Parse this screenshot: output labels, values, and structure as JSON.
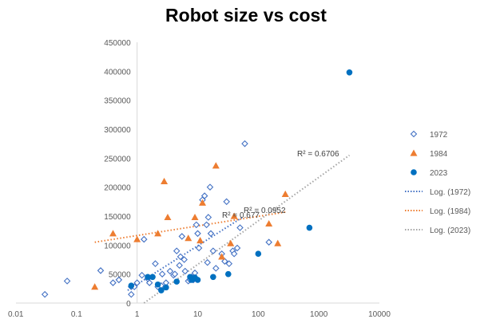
{
  "chart_data": {
    "type": "scatter",
    "title": "Robot size vs cost",
    "xlabel": "",
    "ylabel": "",
    "x_scale": "log",
    "xlim": [
      0.01,
      10000
    ],
    "ylim": [
      0,
      450000
    ],
    "x_ticks": [
      "0.01",
      "0.1",
      "1",
      "10",
      "100",
      "1000",
      "10000"
    ],
    "y_ticks": [
      "0",
      "50000",
      "100000",
      "150000",
      "200000",
      "250000",
      "300000",
      "350000",
      "400000",
      "450000"
    ],
    "grid": false,
    "legend_position": "right",
    "series": [
      {
        "name": "1972",
        "marker": "open-diamond",
        "color": "#4472C4",
        "points": [
          [
            0.03,
            15000
          ],
          [
            0.07,
            38000
          ],
          [
            0.25,
            56000
          ],
          [
            0.4,
            35000
          ],
          [
            0.5,
            40000
          ],
          [
            0.8,
            15000
          ],
          [
            0.8,
            28000
          ],
          [
            0.9,
            28000
          ],
          [
            1.0,
            35000
          ],
          [
            1.2,
            48000
          ],
          [
            1.3,
            110000
          ],
          [
            1.5,
            42000
          ],
          [
            1.6,
            35000
          ],
          [
            2.0,
            68000
          ],
          [
            2.2,
            28000
          ],
          [
            2.5,
            30000
          ],
          [
            2.6,
            50000
          ],
          [
            3.0,
            35000
          ],
          [
            3.5,
            55000
          ],
          [
            4.0,
            48000
          ],
          [
            4.2,
            50000
          ],
          [
            4.5,
            90000
          ],
          [
            5.0,
            65000
          ],
          [
            5.2,
            80000
          ],
          [
            5.5,
            115000
          ],
          [
            6.0,
            75000
          ],
          [
            6.2,
            55000
          ],
          [
            7.0,
            38000
          ],
          [
            7.5,
            40000
          ],
          [
            8.0,
            45000
          ],
          [
            8.5,
            40000
          ],
          [
            9.0,
            52000
          ],
          [
            9.5,
            135000
          ],
          [
            10.0,
            120000
          ],
          [
            10.5,
            95000
          ],
          [
            12.0,
            178000
          ],
          [
            13.0,
            185000
          ],
          [
            14.0,
            135000
          ],
          [
            14.5,
            70000
          ],
          [
            15.0,
            148000
          ],
          [
            16.0,
            200000
          ],
          [
            16.5,
            120000
          ],
          [
            18.0,
            90000
          ],
          [
            20.0,
            60000
          ],
          [
            25.0,
            85000
          ],
          [
            28.0,
            72000
          ],
          [
            30.0,
            175000
          ],
          [
            33.0,
            68000
          ],
          [
            38.0,
            90000
          ],
          [
            40.0,
            85000
          ],
          [
            45.0,
            95000
          ],
          [
            50.0,
            130000
          ],
          [
            60.0,
            275000
          ],
          [
            150.0,
            105000
          ]
        ]
      },
      {
        "name": "1984",
        "marker": "filled-triangle",
        "color": "#ED7D31",
        "points": [
          [
            0.2,
            28000
          ],
          [
            0.4,
            120000
          ],
          [
            1.0,
            110000
          ],
          [
            2.2,
            120000
          ],
          [
            2.8,
            210000
          ],
          [
            3.2,
            148000
          ],
          [
            7.0,
            112000
          ],
          [
            9.0,
            148000
          ],
          [
            11.0,
            108000
          ],
          [
            12.0,
            173000
          ],
          [
            20.0,
            237000
          ],
          [
            25.0,
            80000
          ],
          [
            35.0,
            103000
          ],
          [
            40.0,
            150000
          ],
          [
            150.0,
            137000
          ],
          [
            210.0,
            103000
          ],
          [
            280.0,
            188000
          ]
        ]
      },
      {
        "name": "2023",
        "marker": "filled-circle",
        "color": "#0070C0",
        "points": [
          [
            0.8,
            30000
          ],
          [
            1.5,
            45000
          ],
          [
            1.8,
            45000
          ],
          [
            2.2,
            32000
          ],
          [
            2.5,
            22000
          ],
          [
            3.0,
            27000
          ],
          [
            4.5,
            37000
          ],
          [
            7.5,
            45000
          ],
          [
            8.0,
            40000
          ],
          [
            8.5,
            42000
          ],
          [
            9.0,
            44000
          ],
          [
            10.0,
            40000
          ],
          [
            18.0,
            45000
          ],
          [
            32.0,
            50000
          ],
          [
            100.0,
            85000
          ],
          [
            700.0,
            130000
          ],
          [
            3200.0,
            398000
          ]
        ]
      }
    ],
    "trendlines": [
      {
        "name": "Log. (1972)",
        "color": "#4472C4",
        "x_range": [
          0.7,
          55
        ],
        "y_range": [
          22000,
          148000
        ]
      },
      {
        "name": "Log. (1984)",
        "color": "#ED7D31",
        "x_range": [
          0.2,
          280
        ],
        "y_range": [
          105000,
          157000
        ]
      },
      {
        "name": "Log. (2023)",
        "color": "#A5A5A5",
        "x_range": [
          1.3,
          3200
        ],
        "y_range": [
          0,
          255000
        ]
      }
    ],
    "annotations": [
      {
        "text": "R² = 0.6706"
      },
      {
        "text": "R² = 0.0952"
      },
      {
        "text": "R² = 0.677"
      }
    ]
  }
}
